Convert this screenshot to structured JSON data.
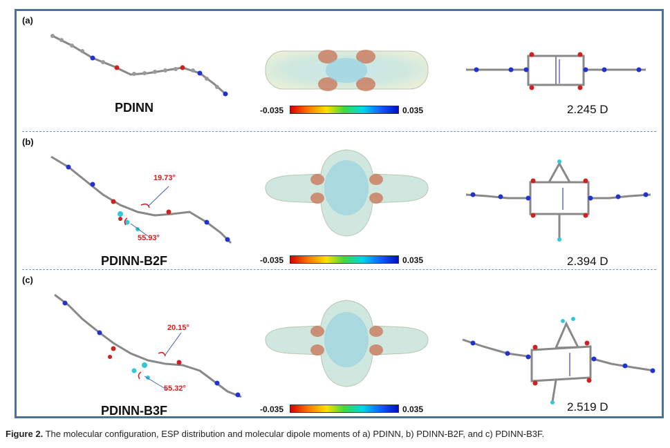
{
  "panels": [
    {
      "label": "(a)",
      "name": "PDINN",
      "dipole": "2.245 D",
      "esp_min": "-0.035",
      "esp_max": "0.035",
      "angles": []
    },
    {
      "label": "(b)",
      "name": "PDINN-B2F",
      "dipole": "2.394 D",
      "esp_min": "-0.035",
      "esp_max": "0.035",
      "angles": [
        "19.73°",
        "55.93°"
      ]
    },
    {
      "label": "(c)",
      "name": "PDINN-B3F",
      "dipole": "2.519 D",
      "esp_min": "-0.035",
      "esp_max": "0.035",
      "angles": [
        "20.15°",
        "55.32°"
      ]
    }
  ],
  "caption": {
    "label": "Figure 2.",
    "text": "The molecular configuration, ESP distribution and molecular dipole moments of a) PDINN, b) PDINN-B2F, and c) PDINN-B3F."
  },
  "colors": {
    "frame": "#4a6fa5",
    "angle_text": "#e01818"
  }
}
